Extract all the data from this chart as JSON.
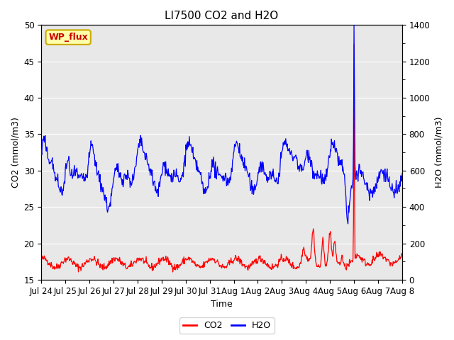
{
  "title": "LI7500 CO2 and H2O",
  "xlabel": "Time",
  "ylabel_left": "CO2 (mmol/m3)",
  "ylabel_right": "H2O (mmol/m3)",
  "ylim_left": [
    15,
    50
  ],
  "ylim_right": [
    0,
    1400
  ],
  "co2_color": "#FF0000",
  "h2o_color": "#0000FF",
  "background_color": "#FFFFFF",
  "plot_bg_color": "#E8E8E8",
  "legend_label_co2": "CO2",
  "legend_label_h2o": "H2O",
  "watermark_text": "WP_flux",
  "watermark_bg": "#FFFFAA",
  "watermark_border": "#CCAA00",
  "x_tick_labels": [
    "Jul 24",
    "Jul 25",
    "Jul 26",
    "Jul 27",
    "Jul 28",
    "Jul 29",
    "Jul 30",
    "Jul 31",
    "Aug 1",
    "Aug 2",
    "Aug 3",
    "Aug 4",
    "Aug 5",
    "Aug 6",
    "Aug 7",
    "Aug 8"
  ],
  "title_fontsize": 11,
  "axis_label_fontsize": 9,
  "tick_fontsize": 8.5
}
